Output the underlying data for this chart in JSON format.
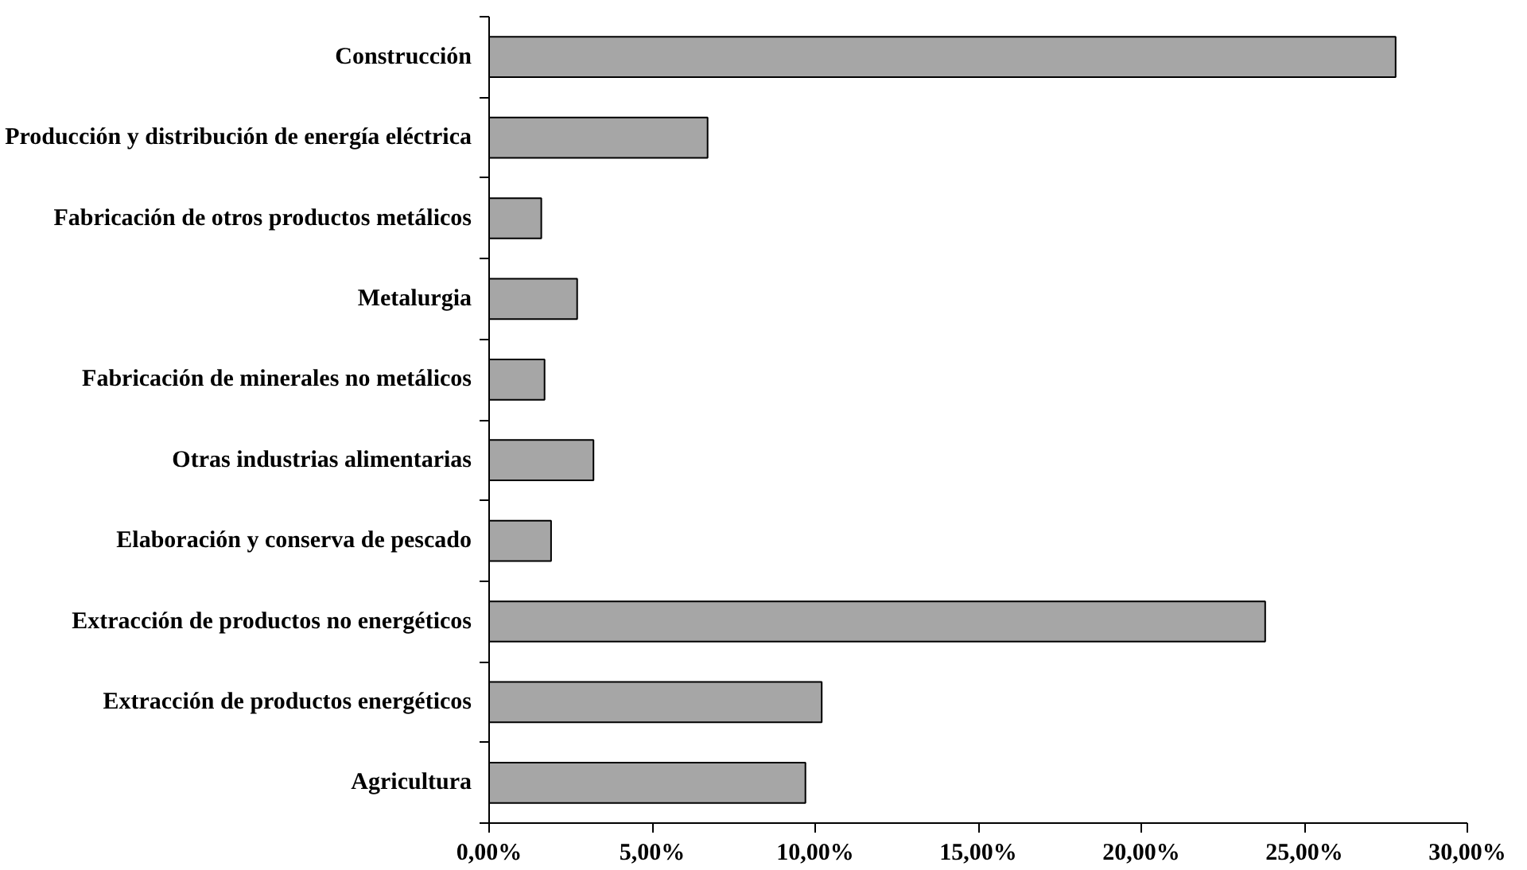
{
  "chart_data": {
    "type": "bar",
    "orientation": "horizontal",
    "categories": [
      "Construcción",
      "Producción y distribución de energía eléctrica",
      "Fabricación de otros productos metálicos",
      "Metalurgia",
      "Fabricación de minerales no metálicos",
      "Otras industrias alimentarias",
      "Elaboración y conserva de pescado",
      "Extracción de productos no energéticos",
      "Extracción de productos energéticos",
      "Agricultura"
    ],
    "values": [
      27.8,
      6.7,
      1.6,
      2.7,
      1.7,
      3.2,
      1.9,
      23.8,
      10.2,
      9.7
    ],
    "color": "#a6a6a6",
    "xlim": [
      0,
      30
    ],
    "xticks": [
      {
        "value": 0,
        "label": "0,00%"
      },
      {
        "value": 5,
        "label": "5,00%"
      },
      {
        "value": 10,
        "label": "10,00%"
      },
      {
        "value": 15,
        "label": "15,00%"
      },
      {
        "value": 20,
        "label": "20,00%"
      },
      {
        "value": 25,
        "label": "25,00%"
      },
      {
        "value": 30,
        "label": "30,00%"
      }
    ],
    "grid": false
  }
}
